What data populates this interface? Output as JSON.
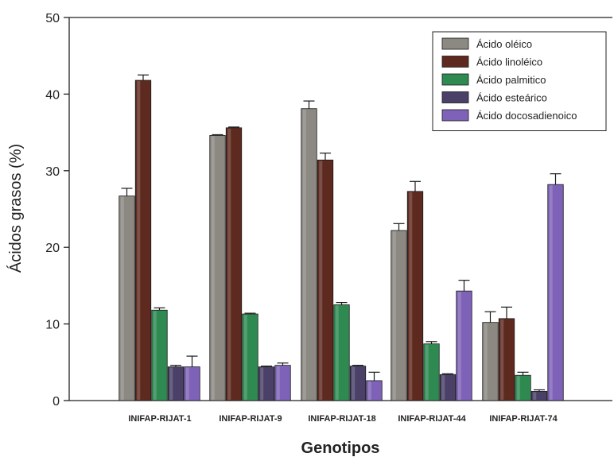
{
  "chart_data": {
    "type": "bar",
    "title": "",
    "xlabel": "Genotipos",
    "ylabel": "Ácidos grasos (%)",
    "ylim": [
      0,
      50
    ],
    "yticks": [
      0,
      10,
      20,
      30,
      40,
      50
    ],
    "grid": false,
    "legend_position": "top-right",
    "categories": [
      "INIFAP-RIJAT-1",
      "INIFAP-RIJAT-9",
      "INIFAP-RIJAT-18",
      "INIFAP-RIJAT-44",
      "INIFAP-RIJAT-74"
    ],
    "series": [
      {
        "name": "Ácido oléico",
        "color": "#8c8882",
        "values": [
          26.7,
          34.6,
          38.1,
          22.2,
          10.2
        ],
        "errors": [
          1.0,
          0.1,
          1.0,
          0.9,
          1.4
        ]
      },
      {
        "name": "Ácido linoléico",
        "color": "#5e2a20",
        "values": [
          41.8,
          35.6,
          31.4,
          27.3,
          10.7
        ],
        "errors": [
          0.7,
          0.1,
          0.9,
          1.3,
          1.5
        ]
      },
      {
        "name": "Ácido palmitico",
        "color": "#2f8a52",
        "values": [
          11.8,
          11.3,
          12.5,
          7.4,
          3.3
        ],
        "errors": [
          0.3,
          0.1,
          0.3,
          0.3,
          0.4
        ]
      },
      {
        "name": "Ácido esteárico",
        "color": "#4a4068",
        "values": [
          4.4,
          4.4,
          4.5,
          3.4,
          1.2
        ],
        "errors": [
          0.2,
          0.1,
          0.1,
          0.1,
          0.2
        ]
      },
      {
        "name": "Ácido docosadienoico",
        "color": "#7e62b8",
        "values": [
          4.4,
          4.6,
          2.6,
          14.3,
          28.2
        ],
        "errors": [
          1.4,
          0.3,
          1.1,
          1.4,
          1.4
        ]
      }
    ]
  }
}
